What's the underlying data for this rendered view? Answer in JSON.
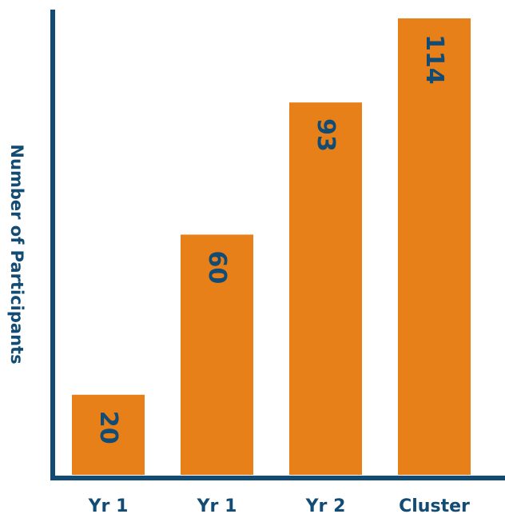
{
  "chart_data": {
    "type": "bar",
    "categories": [
      "Yr 1",
      "Yr 1",
      "Yr 2",
      "Cluster"
    ],
    "values": [
      20,
      60,
      93,
      114
    ],
    "title": "",
    "xlabel": "",
    "ylabel": "Number of Participants",
    "ylim": [
      0,
      120
    ],
    "grid": false,
    "legend": "none",
    "bar_color": "#E8801A",
    "axis_color": "#124B73",
    "label_color": "#124B73"
  }
}
